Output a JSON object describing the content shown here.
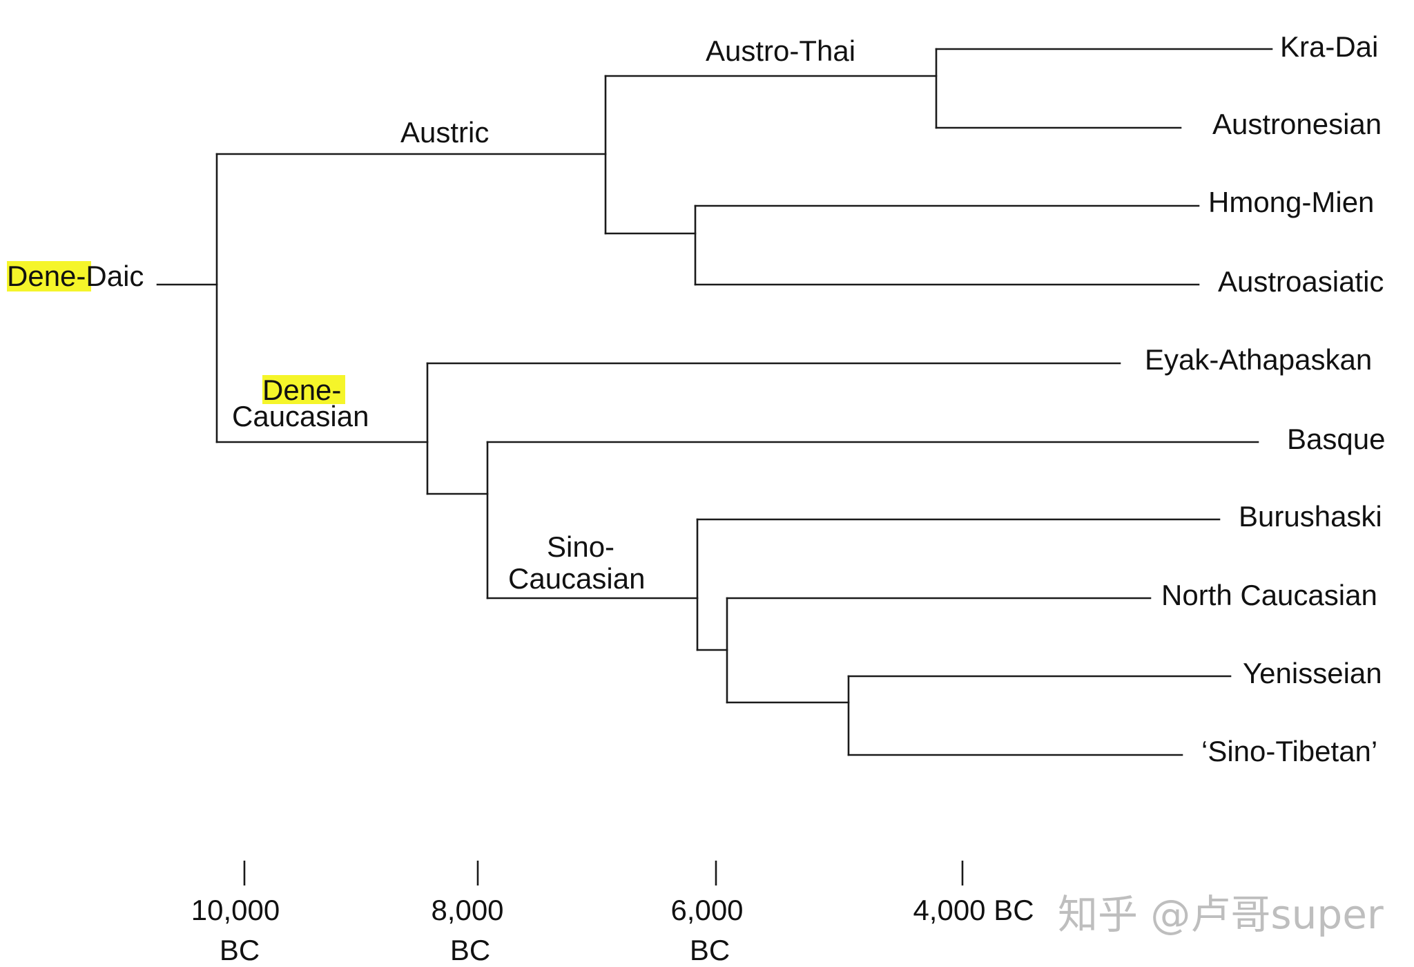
{
  "root": "Dene-Daic",
  "nodes": {
    "austric": "Austric",
    "austro_thai": "Austro-Thai",
    "dene_caucasian_line1": "Dene-",
    "dene_caucasian_line2": "Caucasian",
    "sino_caucasian_line1": "Sino-",
    "sino_caucasian_line2": "Caucasian"
  },
  "leaves": [
    "Kra-Dai",
    "Austronesian",
    "Hmong-Mien",
    "Austroasiatic",
    "Eyak-Athapaskan",
    "Basque",
    "Burushaski",
    "North Caucasian",
    "Yenisseian",
    "‘Sino-Tibetan’"
  ],
  "timeline": [
    {
      "year": "10,000",
      "era": "BC"
    },
    {
      "year": "8,000",
      "era": "BC"
    },
    {
      "year": "6,000",
      "era": "BC"
    },
    {
      "year": "4,000 BC",
      "era": ""
    }
  ],
  "highlight_color": "#f5f52a",
  "watermark": "知乎 @卢哥super"
}
